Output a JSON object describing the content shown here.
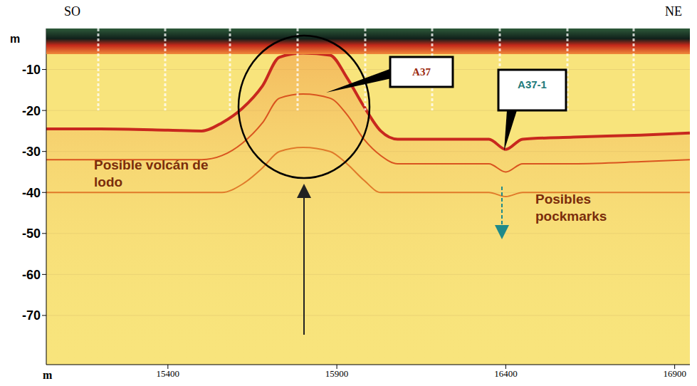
{
  "chart_data": {
    "type": "line",
    "x_label": "m",
    "y_label": "m",
    "annotations": [
      "SO",
      "NE",
      "Posible volcán de lodo",
      "Posibles pockmarks",
      "A37",
      "A37-1"
    ],
    "x": [
      15040,
      15200,
      15400,
      15500,
      15560,
      15620,
      15680,
      15730,
      15800,
      15880,
      15930,
      15980,
      16030,
      16080,
      16200,
      16350,
      16400,
      16450,
      16600,
      16800,
      16945
    ],
    "series": [
      {
        "color": "#c8281e",
        "values": [
          -24.5,
          -24.5,
          -24.8,
          -25,
          -23,
          -19.5,
          -14,
          -7,
          -6,
          -6.5,
          -12,
          -19,
          -25,
          -27,
          -27,
          -27,
          -29.5,
          -27,
          -26.5,
          -26,
          -25.5
        ]
      },
      {
        "color": "#d9541f",
        "values": [
          -32,
          -32,
          -32,
          -32,
          -31,
          -28,
          -23,
          -17,
          -16,
          -17,
          -21,
          -27,
          -31,
          -33,
          -33,
          -33,
          -35,
          -33,
          -33,
          -32.5,
          -32
        ]
      },
      {
        "color": "#e07a2a",
        "values": [
          -40,
          -40,
          -40,
          -40,
          -40,
          -38,
          -34,
          -30,
          -29,
          -30,
          -33,
          -37,
          -40,
          -40,
          -40,
          -40,
          -41,
          -40,
          -40,
          -40,
          -40
        ]
      }
    ],
    "xlim": [
      15040,
      16945
    ],
    "ylim": [
      -82,
      0
    ],
    "xticks": [
      15400,
      15900,
      16400,
      16900
    ],
    "yticks": [
      -70,
      -60,
      -50,
      -40,
      -30,
      -20,
      -10
    ],
    "grid": true
  }
}
